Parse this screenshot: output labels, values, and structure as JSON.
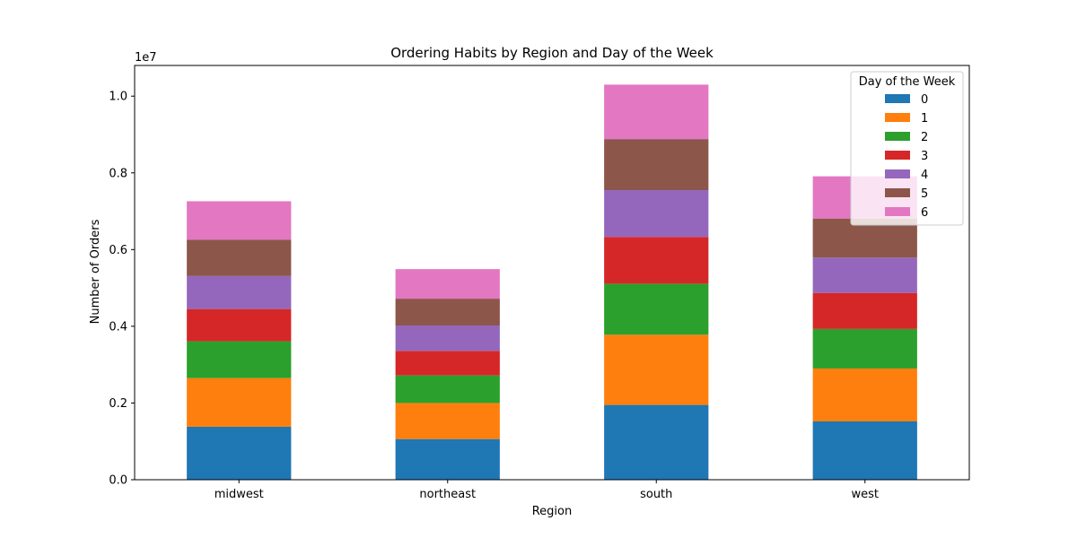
{
  "chart_data": {
    "type": "bar",
    "stacked": true,
    "title": "Ordering Habits by Region and Day of the Week",
    "xlabel": "Region",
    "ylabel": "Number of Orders",
    "ylim": [
      0,
      10800000
    ],
    "y_scale_label": "1e7",
    "y_tick_values": [
      0,
      2000000,
      4000000,
      6000000,
      8000000,
      10000000
    ],
    "y_tick_labels": [
      "0.0",
      "0.2",
      "0.4",
      "0.6",
      "0.8",
      "1.0"
    ],
    "categories": [
      "midwest",
      "northeast",
      "south",
      "west"
    ],
    "grid": false,
    "legend": {
      "title": "Day of the Week",
      "placement": "top-right"
    },
    "series": [
      {
        "name": "0",
        "color": "#1f77b4",
        "values": [
          1380000,
          1060000,
          1950000,
          1520000
        ]
      },
      {
        "name": "1",
        "color": "#ff7f0e",
        "values": [
          1270000,
          940000,
          1830000,
          1380000
        ]
      },
      {
        "name": "2",
        "color": "#2ca02c",
        "values": [
          960000,
          720000,
          1330000,
          1030000
        ]
      },
      {
        "name": "3",
        "color": "#d62728",
        "values": [
          840000,
          640000,
          1220000,
          940000
        ]
      },
      {
        "name": "4",
        "color": "#9467bd",
        "values": [
          860000,
          660000,
          1220000,
          920000
        ]
      },
      {
        "name": "5",
        "color": "#8c564b",
        "values": [
          950000,
          700000,
          1330000,
          1020000
        ]
      },
      {
        "name": "6",
        "color": "#e377c2",
        "values": [
          1000000,
          770000,
          1420000,
          1100000
        ]
      }
    ]
  }
}
